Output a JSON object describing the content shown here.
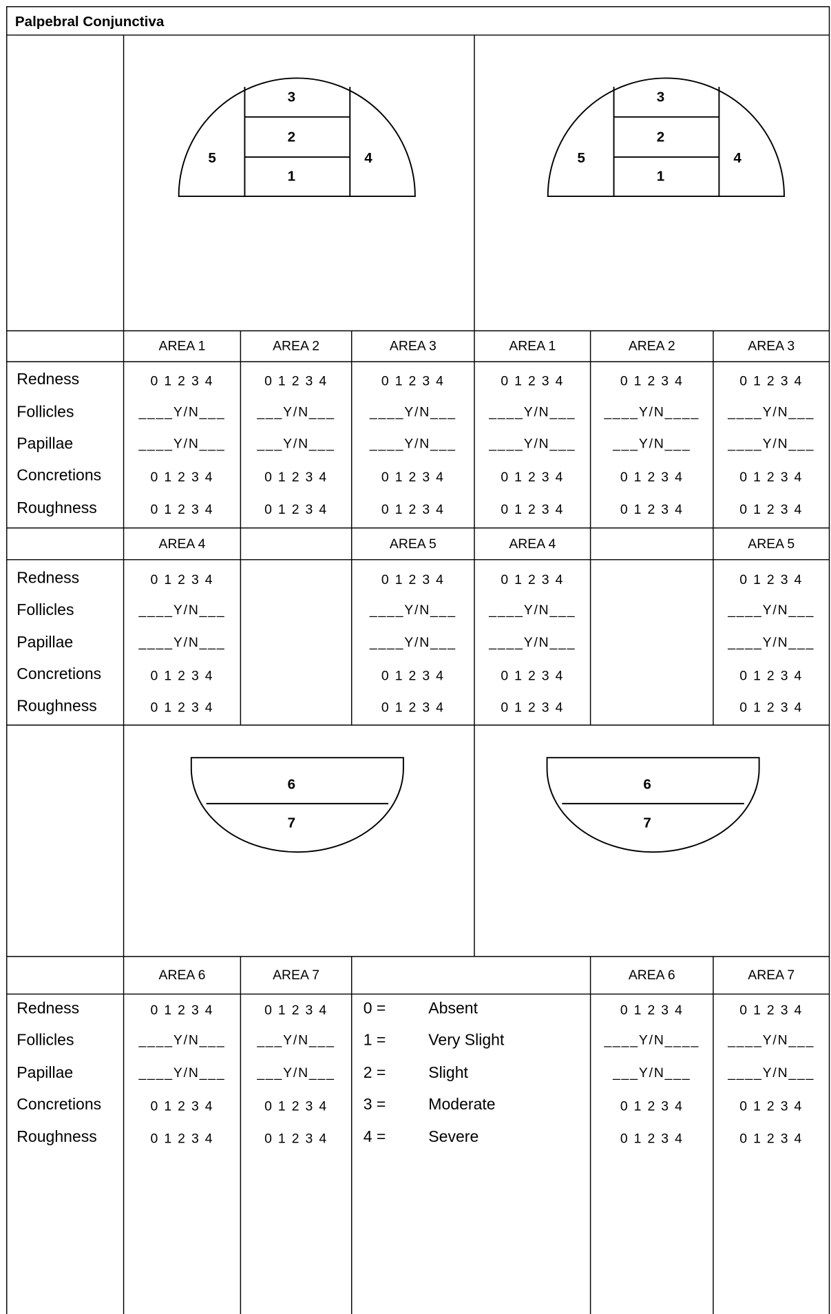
{
  "title": "Palpebral Conjunctiva",
  "upper_diagrams": [
    {
      "top": "3",
      "middle": "2",
      "bottom": "1",
      "left": "5",
      "right": "4"
    },
    {
      "top": "3",
      "middle": "2",
      "bottom": "1",
      "left": "5",
      "right": "4"
    }
  ],
  "lower_diagrams": [
    {
      "top": "6",
      "bottom": "7"
    },
    {
      "top": "6",
      "bottom": "7"
    }
  ],
  "sections": [
    {
      "headers": [
        "AREA 1",
        "AREA 2",
        "AREA 3",
        "AREA 1",
        "AREA 2",
        "AREA 3"
      ],
      "row_labels": [
        "Redness",
        "Follicles",
        "Papillae",
        "Concretions",
        "Roughness"
      ],
      "cells": [
        [
          "0 1 2 3 4",
          "0 1 2 3 4",
          "0 1 2 3 4",
          "0 1 2 3 4",
          "0 1 2 3 4",
          "0 1 2 3 4"
        ],
        [
          "____Y/N___",
          "___Y/N___",
          "____Y/N___",
          "____Y/N___",
          "____Y/N____",
          "____Y/N___"
        ],
        [
          "____Y/N___",
          "___Y/N___",
          "____Y/N___",
          "____Y/N___",
          "___Y/N___",
          "____Y/N___"
        ],
        [
          "0 1 2 3 4",
          "0 1 2 3 4",
          "0 1 2 3 4",
          "0 1 2 3 4",
          "0 1 2 3 4",
          "0 1 2 3 4"
        ],
        [
          "0 1 2 3 4",
          "0 1 2 3 4",
          "0 1 2 3 4",
          "0 1 2 3 4",
          "0 1 2 3 4",
          "0 1 2 3 4"
        ]
      ]
    },
    {
      "headers": [
        "AREA 4",
        null,
        "AREA 5",
        "AREA 4",
        null,
        "AREA 5"
      ],
      "row_labels": [
        "Redness",
        "Follicles",
        "Papillae",
        "Concretions",
        "Roughness"
      ],
      "cells": [
        [
          "0 1 2 3 4",
          null,
          "0 1 2 3 4",
          "0 1 2 3 4",
          null,
          "0 1 2 3 4"
        ],
        [
          "____Y/N___",
          null,
          "____Y/N___",
          "____Y/N___",
          null,
          "____Y/N___"
        ],
        [
          "____Y/N___",
          null,
          "____Y/N___",
          "____Y/N___",
          null,
          "____Y/N___"
        ],
        [
          "0 1 2 3 4",
          null,
          "0 1 2 3 4",
          "0 1 2 3 4",
          null,
          "0 1 2 3 4"
        ],
        [
          "0 1 2 3 4",
          null,
          "0 1 2 3 4",
          "0 1 2 3 4",
          null,
          "0 1 2 3 4"
        ]
      ]
    },
    {
      "headers": [
        "AREA 6",
        "AREA 7",
        "AREA 6",
        "AREA 7"
      ],
      "row_labels": [
        "Redness",
        "Follicles",
        "Papillae",
        "Concretions",
        "Roughness"
      ],
      "cells": [
        [
          "0 1 2 3 4",
          "0 1 2 3 4",
          "0 1 2 3 4",
          "0 1 2 3 4"
        ],
        [
          "____Y/N___",
          "___Y/N___",
          "____Y/N____",
          "____Y/N___"
        ],
        [
          "____Y/N___",
          "___Y/N___",
          "___Y/N___",
          "____Y/N___"
        ],
        [
          "0 1 2 3 4",
          "0 1 2 3 4",
          "0 1 2 3 4",
          "0 1 2 3 4"
        ],
        [
          "0 1 2 3 4",
          "0 1 2 3 4",
          "0 1 2 3 4",
          "0 1 2 3 4"
        ]
      ]
    }
  ],
  "legend": [
    {
      "code": "0 =",
      "text": "Absent"
    },
    {
      "code": "1 =",
      "text": "Very Slight"
    },
    {
      "code": "2 =",
      "text": "Slight"
    },
    {
      "code": "3 =",
      "text": "Moderate"
    },
    {
      "code": "4 =",
      "text": "Severe"
    }
  ]
}
